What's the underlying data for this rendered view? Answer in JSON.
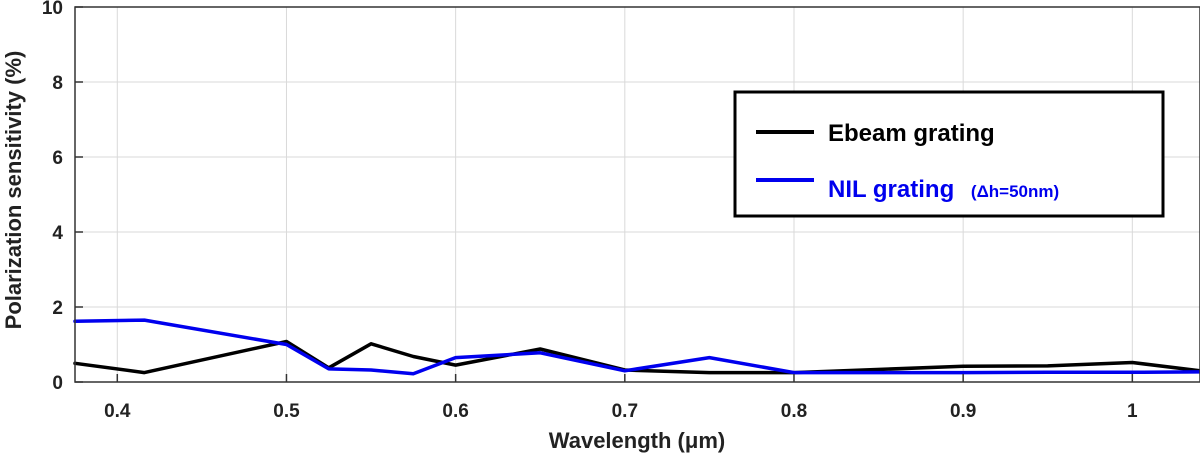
{
  "chart_data": {
    "type": "line",
    "xlabel": "Wavelength (μm)",
    "ylabel": "Polarization sensitivity (%)",
    "xlim": [
      0.375,
      1.04
    ],
    "ylim": [
      0,
      10
    ],
    "x_ticks": [
      0.4,
      0.5,
      0.6,
      0.7,
      0.8,
      0.9,
      1
    ],
    "x_tick_labels": [
      "0.4",
      "0.5",
      "0.6",
      "0.7",
      "0.8",
      "0.9",
      "1"
    ],
    "y_ticks": [
      0,
      2,
      4,
      6,
      8,
      10
    ],
    "y_tick_labels": [
      "0",
      "2",
      "4",
      "6",
      "8",
      "10"
    ],
    "grid": true,
    "legend_position": "top-right",
    "series": [
      {
        "name": "Ebeam grating",
        "name_suffix": "",
        "color": "#000000",
        "x": [
          0.375,
          0.416,
          0.5,
          0.525,
          0.55,
          0.575,
          0.6,
          0.65,
          0.7,
          0.75,
          0.8,
          0.9,
          0.95,
          1.0,
          1.04
        ],
        "y": [
          0.5,
          0.25,
          1.08,
          0.38,
          1.02,
          0.68,
          0.45,
          0.88,
          0.32,
          0.25,
          0.25,
          0.42,
          0.43,
          0.52,
          0.3
        ]
      },
      {
        "name": "NIL grating",
        "name_suffix": "(Δh=50nm)",
        "color": "#0000ee",
        "x": [
          0.375,
          0.416,
          0.5,
          0.525,
          0.55,
          0.575,
          0.6,
          0.65,
          0.7,
          0.75,
          0.8,
          0.9,
          0.95,
          1.0,
          1.04
        ],
        "y": [
          1.62,
          1.65,
          1.0,
          0.35,
          0.32,
          0.22,
          0.65,
          0.78,
          0.3,
          0.65,
          0.25,
          0.25,
          0.26,
          0.26,
          0.27
        ]
      }
    ]
  }
}
